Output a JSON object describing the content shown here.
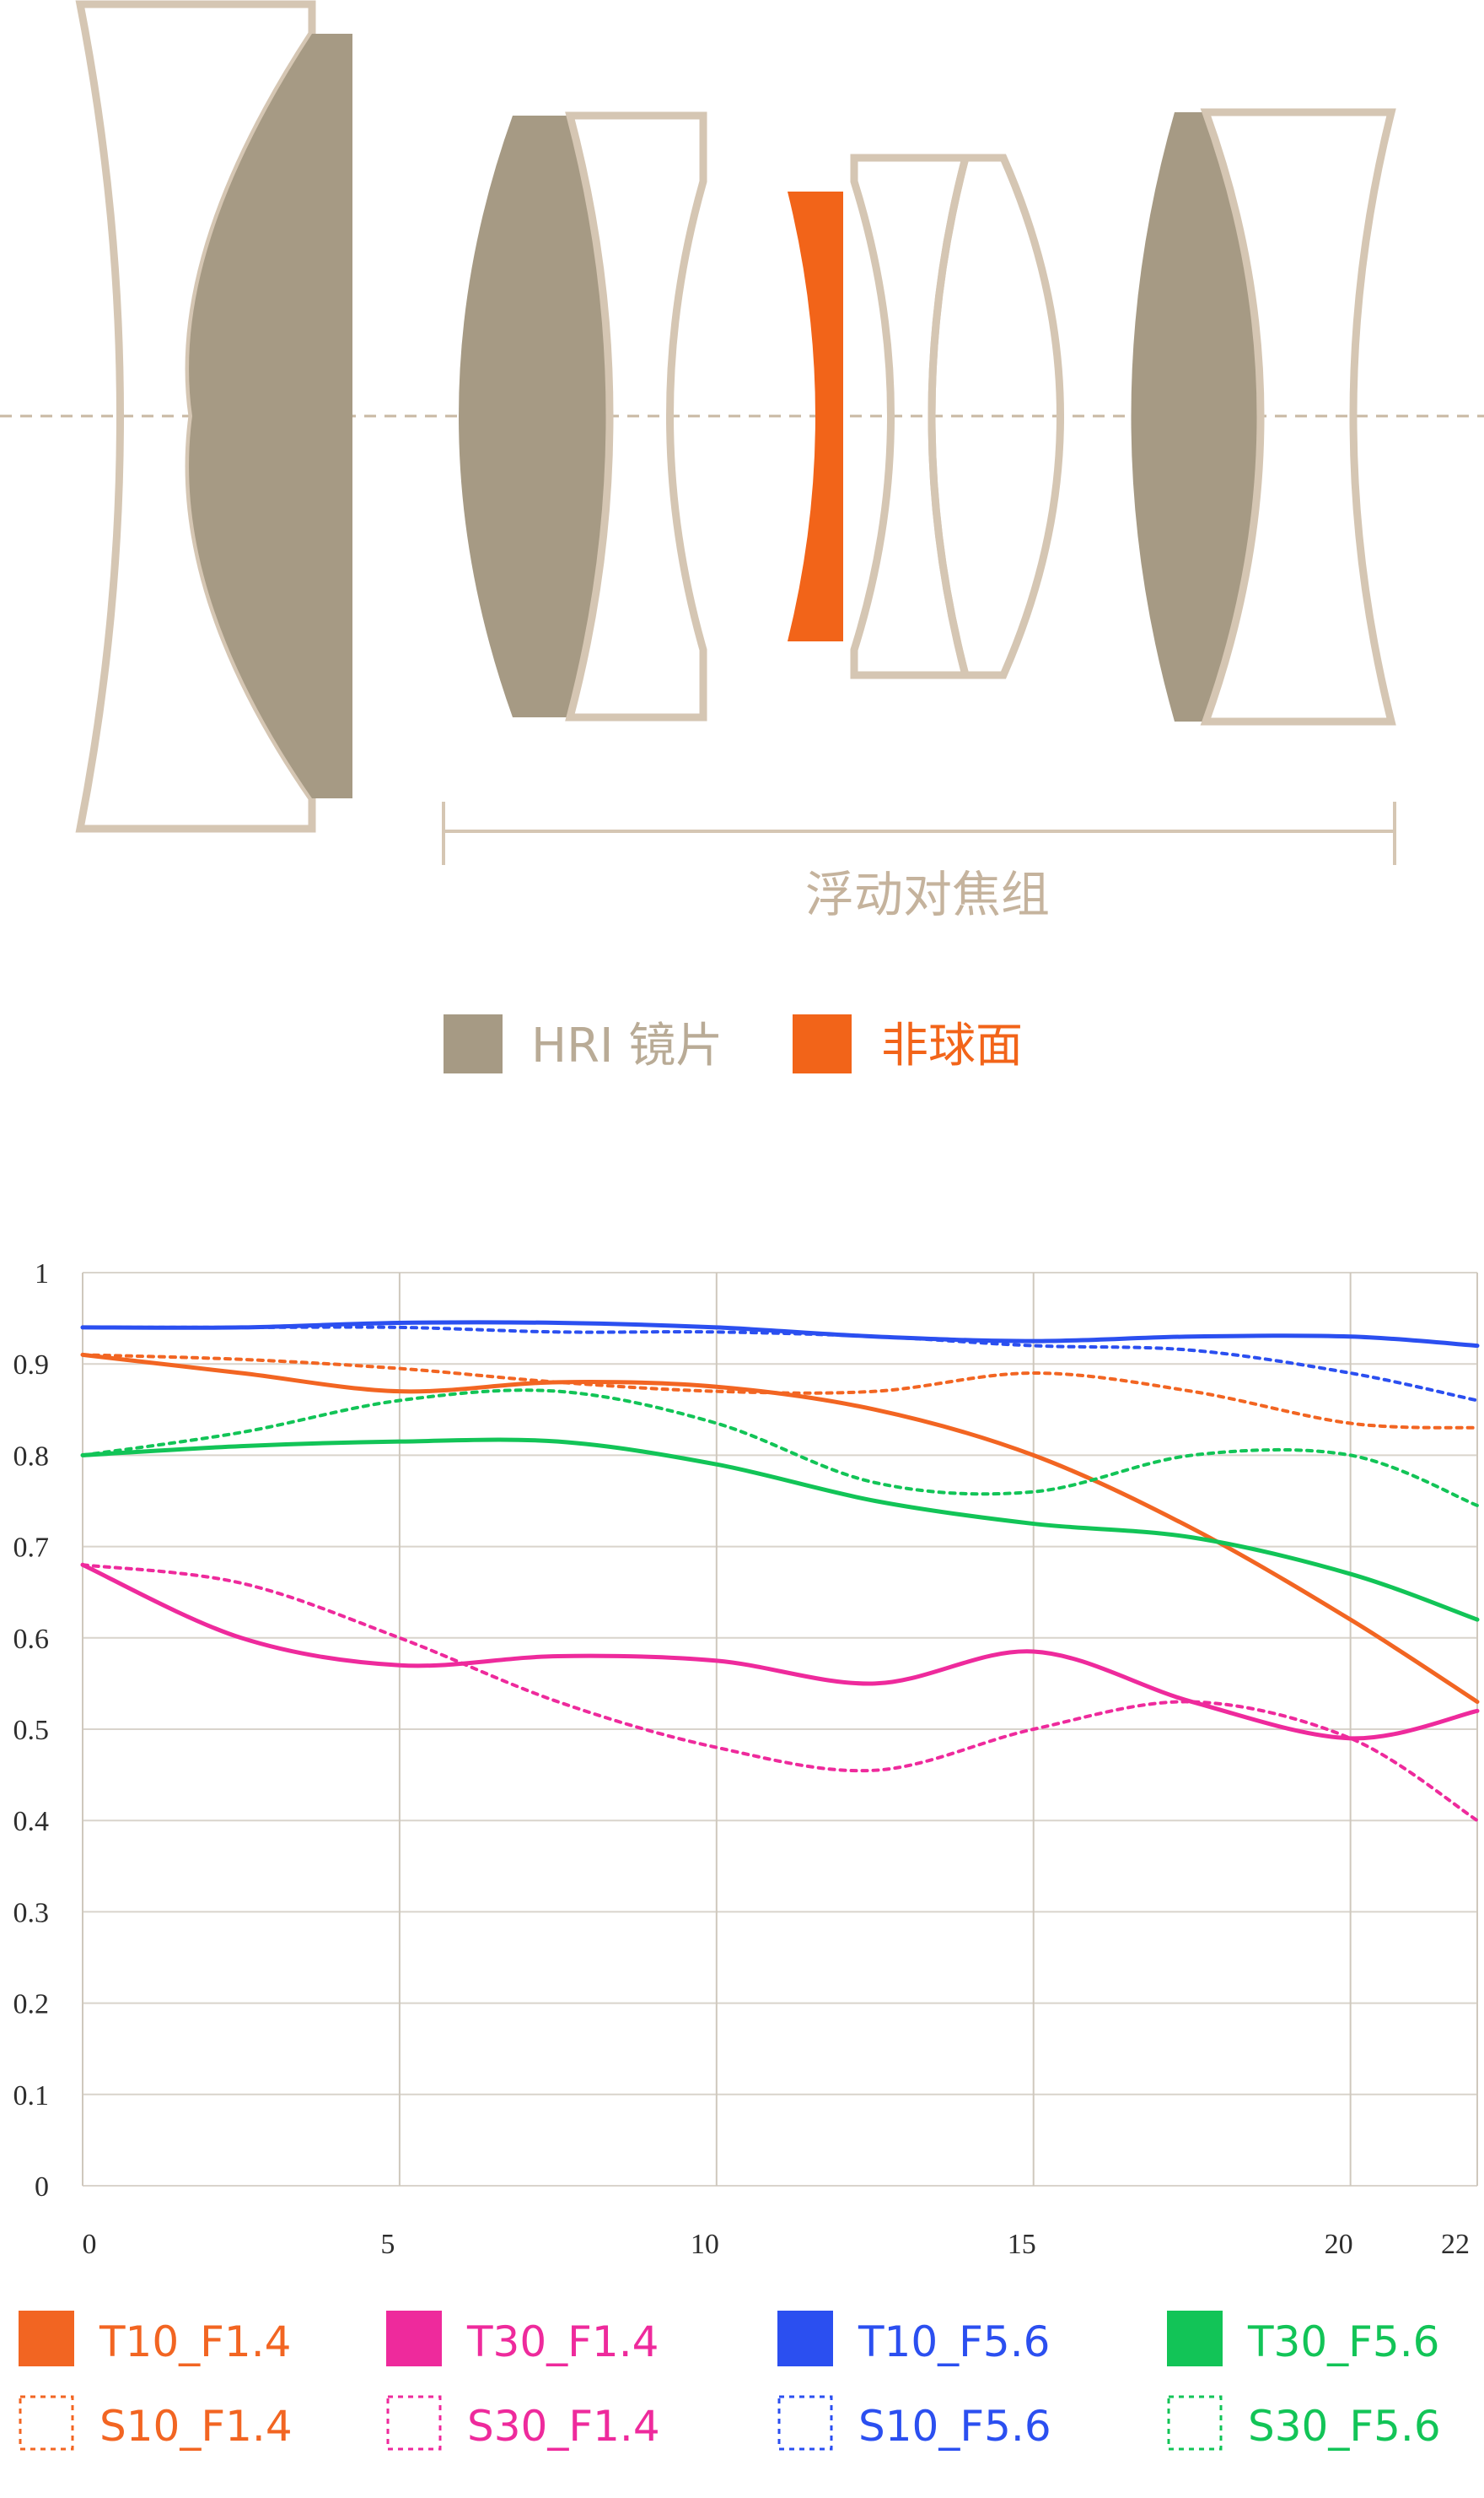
{
  "diagram": {
    "floating_group_label": "浮动对焦组",
    "legend": [
      {
        "label": "HRI 镜片",
        "color": "#a69a84"
      },
      {
        "label": "非球面",
        "color": "#f26419"
      }
    ],
    "colors": {
      "outline": "#d5c6b3",
      "hri": "#a69a84",
      "aspheric": "#f26419",
      "axis": "#c9b9a3"
    }
  },
  "chart_data": {
    "type": "line",
    "title": "",
    "xlabel": "",
    "ylabel": "",
    "xlim": [
      0,
      22
    ],
    "ylim": [
      0,
      1
    ],
    "grid": true,
    "x_ticks": [
      "0",
      "5",
      "10",
      "15",
      "20",
      "22"
    ],
    "x_tick_values": [
      0,
      5,
      10,
      15,
      20,
      22
    ],
    "y_ticks": [
      "0",
      "0.1",
      "0.2",
      "0.3",
      "0.4",
      "0.5",
      "0.6",
      "0.7",
      "0.8",
      "0.9",
      "1"
    ],
    "y_tick_values": [
      0,
      0.1,
      0.2,
      0.3,
      0.4,
      0.5,
      0.6,
      0.7,
      0.8,
      0.9,
      1
    ],
    "legend_position": "bottom",
    "series": [
      {
        "name": "T10_F1.4",
        "color": "#f26522",
        "dashed": false,
        "x": [
          0,
          2.5,
          5,
          7.5,
          10,
          12.5,
          15,
          17.5,
          20,
          22
        ],
        "y": [
          0.91,
          0.89,
          0.87,
          0.88,
          0.875,
          0.85,
          0.8,
          0.72,
          0.62,
          0.53
        ]
      },
      {
        "name": "S10_F1.4",
        "color": "#f26522",
        "dashed": true,
        "x": [
          0,
          2.5,
          5,
          7.5,
          10,
          12.5,
          15,
          17.5,
          20,
          22
        ],
        "y": [
          0.91,
          0.905,
          0.895,
          0.88,
          0.87,
          0.87,
          0.89,
          0.87,
          0.835,
          0.83
        ]
      },
      {
        "name": "T30_F1.4",
        "color": "#ee2a9c",
        "dashed": false,
        "x": [
          0,
          2.5,
          5,
          7.5,
          10,
          12.5,
          15,
          17.5,
          20,
          22
        ],
        "y": [
          0.68,
          0.6,
          0.57,
          0.58,
          0.575,
          0.55,
          0.585,
          0.53,
          0.49,
          0.52
        ]
      },
      {
        "name": "S30_F1.4",
        "color": "#ee2a9c",
        "dashed": true,
        "x": [
          0,
          2.5,
          5,
          7.5,
          10,
          12.5,
          15,
          17.5,
          20,
          22
        ],
        "y": [
          0.68,
          0.66,
          0.6,
          0.53,
          0.48,
          0.455,
          0.5,
          0.53,
          0.49,
          0.4
        ]
      },
      {
        "name": "T10_F5.6",
        "color": "#2b4ff0",
        "dashed": false,
        "x": [
          0,
          2.5,
          5,
          7.5,
          10,
          12.5,
          15,
          17.5,
          20,
          22
        ],
        "y": [
          0.94,
          0.94,
          0.945,
          0.945,
          0.94,
          0.93,
          0.925,
          0.93,
          0.93,
          0.92
        ]
      },
      {
        "name": "S10_F5.6",
        "color": "#2b4ff0",
        "dashed": true,
        "x": [
          0,
          2.5,
          5,
          7.5,
          10,
          12.5,
          15,
          17.5,
          20,
          22
        ],
        "y": [
          0.94,
          0.94,
          0.94,
          0.935,
          0.935,
          0.93,
          0.92,
          0.915,
          0.89,
          0.86
        ]
      },
      {
        "name": "T30_F5.6",
        "color": "#12c457",
        "dashed": false,
        "x": [
          0,
          2.5,
          5,
          7.5,
          10,
          12.5,
          15,
          17.5,
          20,
          22
        ],
        "y": [
          0.8,
          0.81,
          0.815,
          0.815,
          0.79,
          0.75,
          0.725,
          0.71,
          0.67,
          0.62
        ]
      },
      {
        "name": "S30_F5.6",
        "color": "#12c457",
        "dashed": true,
        "x": [
          0,
          2.5,
          5,
          7.5,
          10,
          12.5,
          15,
          17.5,
          20,
          22
        ],
        "y": [
          0.8,
          0.825,
          0.86,
          0.87,
          0.835,
          0.77,
          0.76,
          0.8,
          0.8,
          0.745
        ]
      }
    ]
  }
}
